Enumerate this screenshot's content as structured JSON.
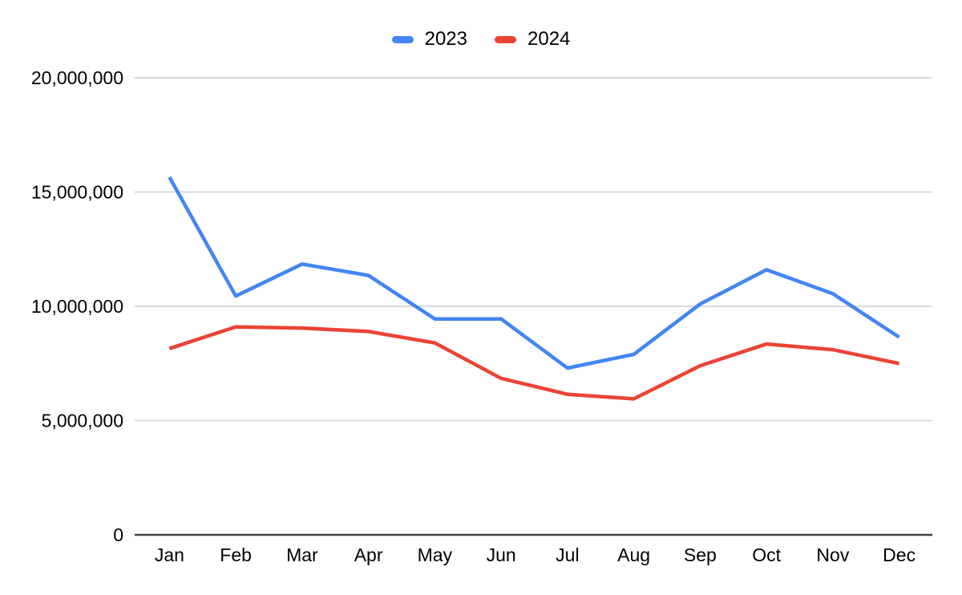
{
  "chart_data": {
    "type": "line",
    "title": "",
    "xlabel": "",
    "ylabel": "",
    "categories": [
      "Jan",
      "Feb",
      "Mar",
      "Apr",
      "May",
      "Jun",
      "Jul",
      "Aug",
      "Sep",
      "Oct",
      "Nov",
      "Dec"
    ],
    "series": [
      {
        "name": "2023",
        "color": "#4285F4",
        "values": [
          15650000,
          10450000,
          11850000,
          11350000,
          9450000,
          9450000,
          7300000,
          7900000,
          10100000,
          11600000,
          10550000,
          8650000
        ]
      },
      {
        "name": "2024",
        "color": "#EA4335",
        "values": [
          8150000,
          9100000,
          9050000,
          8900000,
          8400000,
          6850000,
          6150000,
          5950000,
          7400000,
          8350000,
          8100000,
          7500000
        ]
      }
    ],
    "ylim": [
      0,
      20000000
    ],
    "ytick_interval": 5000000,
    "ytick_labels": [
      "0",
      "5,000,000",
      "10,000,000",
      "15,000,000",
      "20,000,000"
    ],
    "grid": true,
    "legend_position": "top-center"
  },
  "legend": {
    "items": [
      {
        "label": "2023",
        "color": "#4285F4"
      },
      {
        "label": "2024",
        "color": "#EA4335"
      }
    ]
  },
  "colors": {
    "background": "#ffffff",
    "gridline": "#d9d9d9",
    "axis_line": "#424242",
    "label_text": "#000000",
    "series_2023": "#4285F4",
    "series_2024": "#EA4335"
  }
}
